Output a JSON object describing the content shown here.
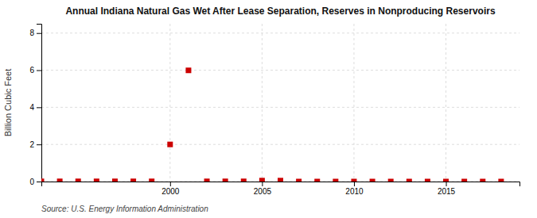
{
  "chart_data": {
    "type": "scatter",
    "title": "Annual Indiana Natural Gas Wet After Lease Separation, Reserves in Nonproducing Reservoirs",
    "y_label": "Billion Cubic Feet",
    "annotations": [
      "Source: U.S. Energy Information Administration"
    ],
    "x": [
      1993,
      1994,
      1995,
      1996,
      1997,
      1998,
      1999,
      2000,
      2001,
      2002,
      2003,
      2004,
      2005,
      2006,
      2007,
      2008,
      2009,
      2010,
      2011,
      2012,
      2013,
      2014,
      2015,
      2016,
      2017,
      2018
    ],
    "values": [
      0.01,
      0.01,
      0.01,
      0.01,
      0.01,
      0.01,
      0.01,
      2.0,
      5.99,
      0.01,
      0.01,
      0.01,
      0.05,
      0.05,
      0.0,
      0.0,
      0.0,
      0.0,
      0.0,
      0.0,
      0.0,
      0.0,
      0.0,
      0.0,
      0.0,
      0.0
    ],
    "color": "#cc0000",
    "marker": "square",
    "xlim": [
      1993,
      2019
    ],
    "ylim": [
      0,
      8.5
    ],
    "xticks": [
      2000,
      2005,
      2010,
      2015
    ],
    "yticks": [
      0,
      2,
      4,
      6,
      8
    ],
    "grid": true
  }
}
